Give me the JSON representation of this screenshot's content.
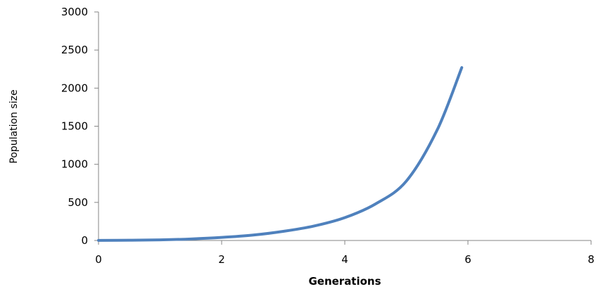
{
  "chart_data": {
    "type": "line",
    "title": "",
    "xlabel": "Generations",
    "ylabel": "Population size",
    "xlim": [
      0,
      8
    ],
    "ylim": [
      0,
      3000
    ],
    "x_ticks": [
      0,
      2,
      4,
      6,
      8
    ],
    "y_ticks": [
      0,
      500,
      1000,
      1500,
      2000,
      2500,
      3000
    ],
    "x_tick_labels": [
      "0",
      "2",
      "4",
      "6",
      "8"
    ],
    "y_tick_labels": [
      "0",
      "500",
      "1000",
      "1500",
      "2000",
      "2500",
      "3000"
    ],
    "grid": false,
    "legend": "none",
    "series": [
      {
        "color": "#4f81bd",
        "x": [
          0,
          0.5,
          1,
          1.5,
          2,
          2.5,
          3,
          3.5,
          4,
          4.5,
          5,
          5.5,
          5.9
        ],
        "y": [
          1,
          3,
          8,
          20,
          40,
          70,
          120,
          190,
          300,
          480,
          780,
          1450,
          2270
        ]
      }
    ]
  }
}
